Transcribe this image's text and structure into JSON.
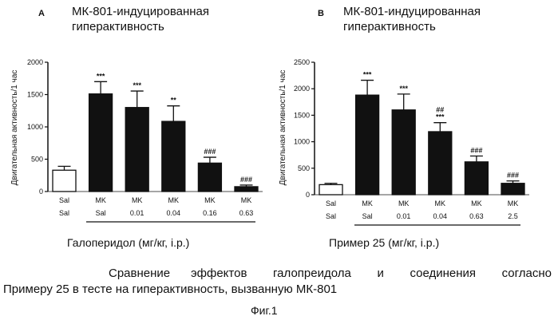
{
  "figure": {
    "caption_line1_a": "Сравнение",
    "caption_line1_b": "эффектов галопреидола и соединения согласно",
    "caption_line2": "Примеру 25 в тесте на гиперактивность, вызванную МК-801",
    "fig_label": "Фиг.1"
  },
  "colors": {
    "filled_bar": "#111111",
    "open_bar": "#ffffff",
    "axis": "#111111"
  },
  "chart_data": [
    {
      "panel_letter": "A",
      "type": "bar",
      "title_line1": "МК-801-индуцированная",
      "title_line2": "гиперактивность",
      "ylabel": "Двигательная активность/1 час",
      "ylim": [
        0,
        2000
      ],
      "yticks": [
        0,
        500,
        1000,
        1500,
        2000
      ],
      "categories_row1": [
        "Sal",
        "MK",
        "MK",
        "MK",
        "MK",
        "MK"
      ],
      "categories_row2": [
        "Sal",
        "Sal",
        "0.01",
        "0.04",
        "0.16",
        "0.63"
      ],
      "values": [
        330,
        1510,
        1300,
        1085,
        440,
        75
      ],
      "errors": [
        60,
        190,
        255,
        240,
        90,
        25
      ],
      "significance": [
        "",
        "***",
        "***",
        "**",
        "###",
        "###"
      ],
      "filled": [
        false,
        true,
        true,
        true,
        true,
        true
      ],
      "dose_label": "Галоперидол (мг/кг, i.p.)"
    },
    {
      "panel_letter": "B",
      "type": "bar",
      "title_line1": "МК-801-индуцированная",
      "title_line2": "гиперактивность",
      "ylabel": "Двигательная активность/1 час",
      "ylim": [
        0,
        2500
      ],
      "yticks": [
        0,
        500,
        1000,
        1500,
        2000,
        2500
      ],
      "categories_row1": [
        "Sal",
        "MK",
        "MK",
        "MK",
        "MK",
        "MK"
      ],
      "categories_row2": [
        "Sal",
        "Sal",
        "0.01",
        "0.04",
        "0.63",
        "2.5"
      ],
      "values": [
        190,
        1880,
        1600,
        1190,
        620,
        215
      ],
      "errors": [
        25,
        280,
        300,
        170,
        110,
        45
      ],
      "significance": [
        "",
        "***",
        "***",
        "##\n***",
        "###",
        "###"
      ],
      "filled": [
        false,
        true,
        true,
        true,
        true,
        true
      ],
      "dose_label": "Пример 25 (мг/кг, i.p.)"
    }
  ]
}
